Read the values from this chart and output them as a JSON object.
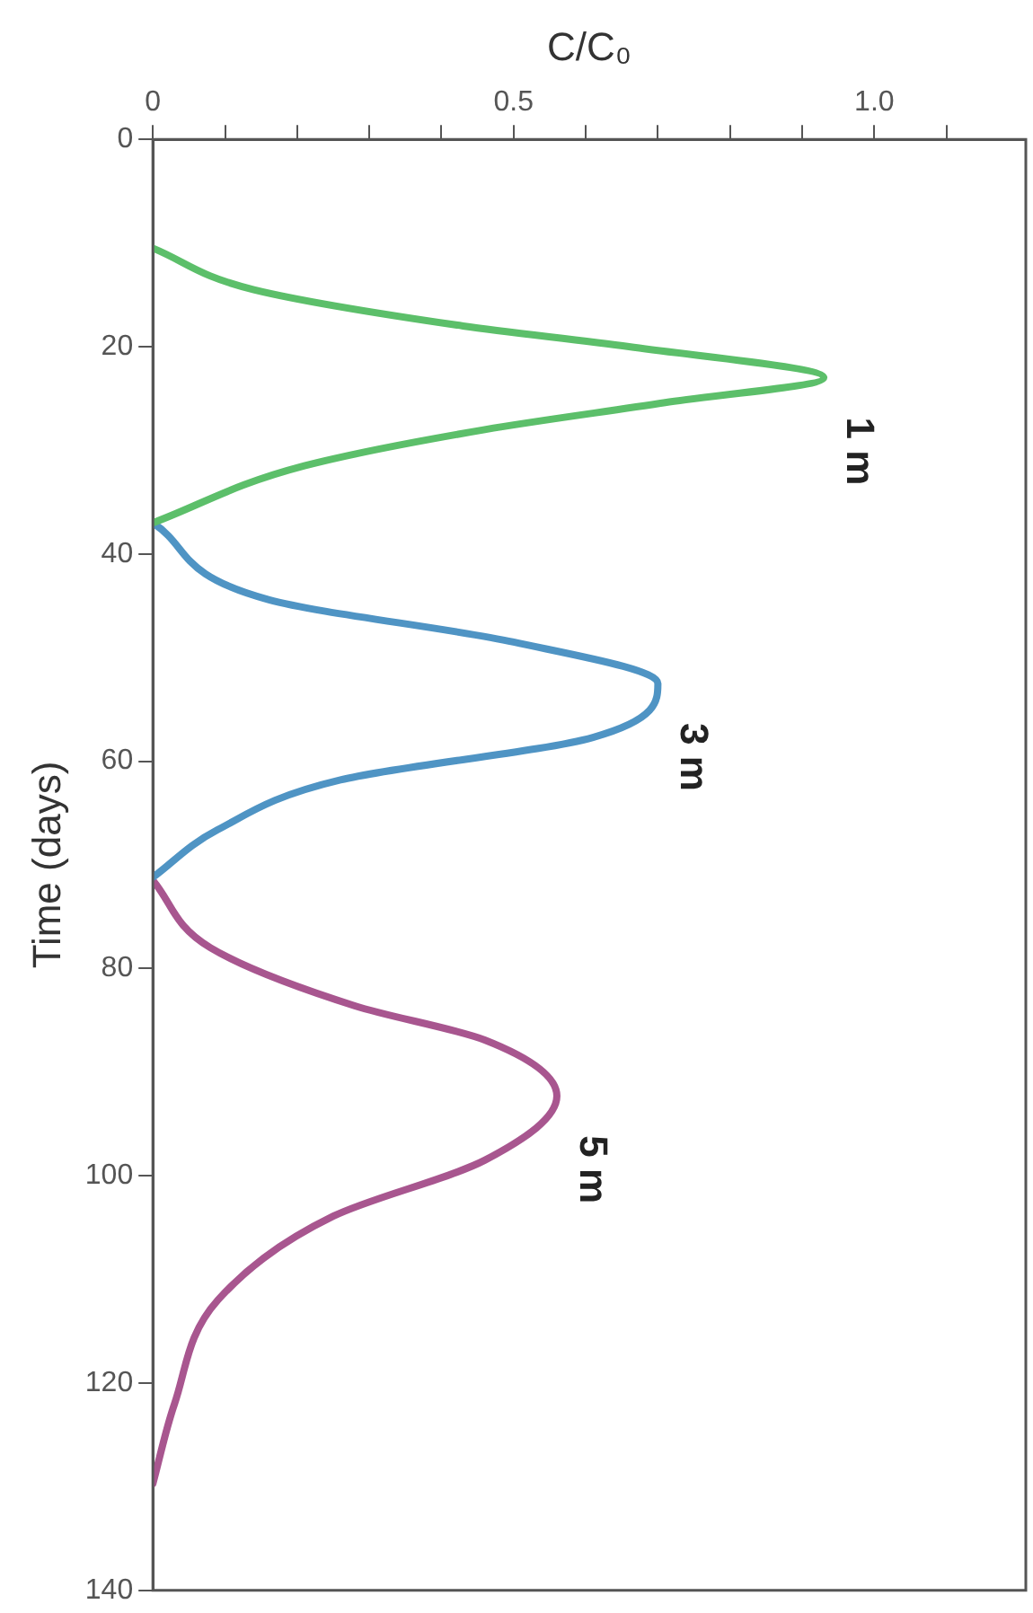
{
  "chart_data": {
    "type": "line",
    "xlabel": "C/C₀",
    "ylabel": "Time (days)",
    "ylim": [
      140,
      0
    ],
    "yticks": [
      0,
      20,
      40,
      60,
      80,
      100,
      120,
      140
    ],
    "xlim": [
      0,
      1.21
    ],
    "xticks": [
      0,
      {
        "value": 0.1,
        "label": null
      },
      {
        "value": 0.2,
        "label": null
      },
      {
        "value": 0.3,
        "label": null
      },
      {
        "value": 0.4,
        "label": null
      },
      0.5,
      {
        "value": 0.6,
        "label": null
      },
      {
        "value": 0.7,
        "label": null
      },
      {
        "value": 0.8,
        "label": null
      },
      {
        "value": 0.9,
        "label": null
      },
      {
        "value": 1,
        "label": "1.0"
      },
      {
        "value": 1.1,
        "label": null
      }
    ],
    "grid": false,
    "legend": false,
    "marker": "none",
    "line_style": "solid",
    "series": [
      {
        "name": "1 m",
        "color": "#5cbf6a",
        "values": [
          10.5,
          14.5,
          18,
          20,
          23,
          25.4,
          28,
          31.5,
          37
        ],
        "x": [
          0,
          0.14,
          0.43,
          0.66,
          0.93,
          0.71,
          0.46,
          0.21,
          0
        ]
      },
      {
        "name": "3 m",
        "color": "#4f94c4",
        "values": [
          37,
          44.4,
          48.5,
          52.5,
          57.7,
          61.8,
          66.6,
          71.2
        ],
        "x": [
          0,
          0.16,
          0.5,
          0.7,
          0.61,
          0.26,
          0.09,
          0
        ]
      },
      {
        "name": "5 m",
        "color": "#a8568f",
        "values": [
          71.5,
          78,
          83.6,
          86.9,
          92.3,
          98.5,
          103.9,
          112,
          122,
          129.7
        ],
        "x": [
          0,
          0.08,
          0.28,
          0.46,
          0.56,
          0.46,
          0.25,
          0.09,
          0.03,
          0
        ]
      }
    ]
  }
}
